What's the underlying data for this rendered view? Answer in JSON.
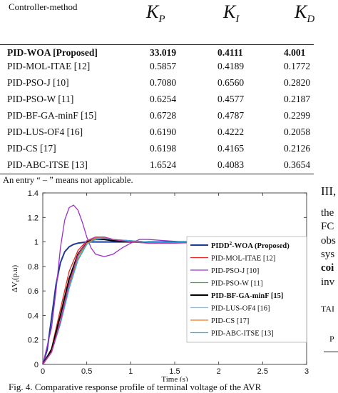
{
  "table": {
    "headers": {
      "method": "Controller-method",
      "kp": "K",
      "kp_sub": "P",
      "ki": "K",
      "ki_sub": "I",
      "kd": "K",
      "kd_sub": "D"
    },
    "rows": [
      {
        "method": "PID-WOA [Proposed]",
        "kp": "33.019",
        "ki": "0.4111",
        "kd": "4.001"
      },
      {
        "method": "PID-MOL-ITAE [12]",
        "kp": "0.5857",
        "ki": "0.4189",
        "kd": "0.1772"
      },
      {
        "method": "PID-PSO-J [10]",
        "kp": "0.7080",
        "ki": "0.6560",
        "kd": "0.2820"
      },
      {
        "method": "PID-PSO-W [11]",
        "kp": "0.6254",
        "ki": "0.4577",
        "kd": "0.2187"
      },
      {
        "method": "PID-BF-GA-minF [15]",
        "kp": "0.6728",
        "ki": "0.4787",
        "kd": "0.2299"
      },
      {
        "method": "PID-LUS-OF4 [16]",
        "kp": "0.6190",
        "ki": "0.4222",
        "kd": "0.2058"
      },
      {
        "method": "PID-CS [17]",
        "kp": "0.6198",
        "ki": "0.4165",
        "kd": "0.2126"
      },
      {
        "method": "PID-ABC-ITSE [13]",
        "kp": "1.6524",
        "ki": "0.4083",
        "kd": "0.3654"
      }
    ],
    "note": "An entry “ – ” means not applicable."
  },
  "right_column": [
    "III,",
    "the",
    "FC",
    "obs",
    "sys",
    "coi",
    "inv",
    "TAI",
    "P"
  ],
  "caption": "Fig. 4. Comparative response profile of terminal voltage of the AVR",
  "chart_data": {
    "type": "line",
    "xlabel": "Time (s)",
    "ylabel": "ΔV",
    "ylabel_sub": "t",
    "ylabel_tail": "(p.u)",
    "xlim": [
      0,
      3
    ],
    "ylim": [
      0,
      1.4
    ],
    "xticks": [
      0,
      0.5,
      1,
      1.5,
      2,
      2.5,
      3
    ],
    "xtick_labels": [
      "0",
      "0.5",
      "1",
      "1.5",
      "2",
      "2.5",
      "3"
    ],
    "yticks": [
      0,
      0.2,
      0.4,
      0.6,
      0.8,
      1,
      1.2,
      1.4
    ],
    "ytick_labels": [
      "0",
      "0.2",
      "0.4",
      "0.6",
      "0.8",
      "1",
      "1.2",
      "1.4"
    ],
    "grid": false,
    "legend_position": "bottom-right",
    "series": [
      {
        "name": "PIDD",
        "name_sup": "2",
        "name_tail": "-WOA (Proposed)",
        "color": "#1f3a93",
        "width": 2,
        "x": [
          0,
          0.05,
          0.1,
          0.15,
          0.2,
          0.25,
          0.3,
          0.35,
          0.4,
          0.5,
          0.6,
          0.8,
          1,
          1.5,
          2,
          2.5,
          3
        ],
        "y": [
          0,
          0.12,
          0.38,
          0.65,
          0.83,
          0.92,
          0.96,
          0.98,
          0.99,
          1.0,
          1.0,
          1.0,
          1.0,
          1.0,
          1.0,
          1.0,
          1.0
        ]
      },
      {
        "name": "PID-MOL-ITAE [12]",
        "color": "#e8281e",
        "width": 1.3,
        "x": [
          0,
          0.1,
          0.2,
          0.3,
          0.4,
          0.5,
          0.6,
          0.7,
          0.8,
          0.9,
          1.0,
          1.2,
          1.4,
          1.6,
          2,
          2.5,
          3
        ],
        "y": [
          0,
          0.13,
          0.45,
          0.76,
          0.93,
          1.01,
          1.03,
          1.03,
          1.02,
          1.01,
          1.0,
          0.995,
          0.995,
          0.998,
          1.0,
          1.0,
          1.0
        ]
      },
      {
        "name": "PID-PSO-J [10]",
        "color": "#9b30c9",
        "width": 1.3,
        "x": [
          0,
          0.1,
          0.15,
          0.2,
          0.25,
          0.3,
          0.35,
          0.4,
          0.45,
          0.5,
          0.55,
          0.6,
          0.7,
          0.8,
          0.9,
          1.0,
          1.1,
          1.2,
          1.4,
          1.6,
          2,
          2.5,
          3
        ],
        "y": [
          0,
          0.3,
          0.6,
          0.95,
          1.18,
          1.28,
          1.3,
          1.26,
          1.16,
          1.04,
          0.95,
          0.9,
          0.88,
          0.9,
          0.95,
          0.99,
          1.02,
          1.02,
          1.01,
          1.0,
          1.0,
          1.0,
          1.0
        ]
      },
      {
        "name": "PID-PSO-W [11]",
        "color": "#3caa3c",
        "width": 1.3,
        "x": [
          0,
          0.1,
          0.2,
          0.3,
          0.4,
          0.5,
          0.6,
          0.7,
          0.8,
          1.0,
          1.2,
          1.5,
          2,
          2.5,
          3
        ],
        "y": [
          0,
          0.1,
          0.35,
          0.65,
          0.88,
          1.0,
          1.03,
          1.03,
          1.02,
          1.01,
          1.0,
          1.0,
          1.0,
          1.0,
          1.0
        ]
      },
      {
        "name": "PID-BF-GA-minF [15]",
        "color": "#000000",
        "width": 2,
        "x": [
          0,
          0.1,
          0.2,
          0.3,
          0.4,
          0.5,
          0.6,
          0.7,
          0.8,
          1.0,
          1.2,
          1.5,
          2,
          2.5,
          3
        ],
        "y": [
          0,
          0.12,
          0.4,
          0.7,
          0.9,
          1.0,
          1.02,
          1.02,
          1.01,
          1.0,
          1.0,
          1.0,
          1.0,
          1.0,
          1.0
        ]
      },
      {
        "name": "PID-LUS-OF4 [16]",
        "color": "#9ab8cc",
        "width": 1.3,
        "x": [
          0,
          0.1,
          0.2,
          0.3,
          0.4,
          0.5,
          0.6,
          0.7,
          0.8,
          1.0,
          1.2,
          1.5,
          2,
          2.5,
          3
        ],
        "y": [
          0,
          0.1,
          0.33,
          0.62,
          0.85,
          0.98,
          1.02,
          1.03,
          1.02,
          1.01,
          1.0,
          1.0,
          1.0,
          1.0,
          1.0
        ]
      },
      {
        "name": "PID-CS [17]",
        "color": "#f07a1a",
        "width": 1.3,
        "x": [
          0,
          0.1,
          0.2,
          0.3,
          0.4,
          0.5,
          0.6,
          0.7,
          0.8,
          1.0,
          1.2,
          1.5,
          2,
          2.5,
          3
        ],
        "y": [
          0,
          0.1,
          0.34,
          0.63,
          0.86,
          0.99,
          1.03,
          1.03,
          1.02,
          1.01,
          1.0,
          1.0,
          1.0,
          1.0,
          1.0
        ]
      },
      {
        "name": "PID-ABC-ITSE [13]",
        "color": "#2ab4e8",
        "width": 1.3,
        "x": [
          0,
          0.1,
          0.2,
          0.3,
          0.4,
          0.5,
          0.6,
          0.7,
          0.8,
          1.0,
          1.2,
          1.5,
          2,
          2.5,
          3
        ],
        "y": [
          0,
          0.1,
          0.33,
          0.62,
          0.85,
          0.98,
          1.02,
          1.03,
          1.02,
          1.01,
          1.0,
          1.0,
          1.0,
          1.0,
          1.0
        ]
      },
      {
        "name": "",
        "color": "#c03aa0",
        "width": 1.5,
        "x": [
          0,
          0.1,
          0.2,
          0.3,
          0.4,
          0.5,
          0.6,
          0.7,
          0.8,
          1.0,
          1.2,
          1.5,
          2,
          2.5,
          3
        ],
        "y": [
          0,
          0.1,
          0.35,
          0.66,
          0.89,
          1.01,
          1.04,
          1.04,
          1.02,
          1.0,
          0.99,
          0.99,
          1.0,
          1.0,
          1.0
        ]
      }
    ]
  }
}
